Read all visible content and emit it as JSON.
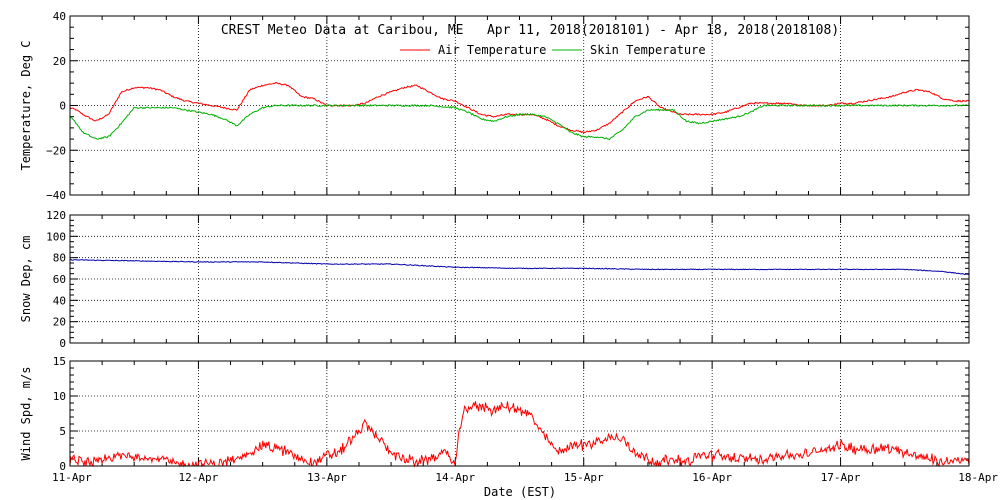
{
  "chart_data": {
    "type": "line",
    "title": "CREST Meteo Data at Caribou, ME   Apr 11, 2018(2018101) - Apr 18, 2018(2018108)",
    "xlabel": "Date (EST)",
    "x_tick_labels": [
      "11-Apr",
      "12-Apr",
      "13-Apr",
      "14-Apr",
      "15-Apr",
      "16-Apr",
      "17-Apr",
      "18-Apr"
    ],
    "x_range": [
      "11-Apr",
      "18-Apr"
    ],
    "panels": [
      {
        "id": "temperature",
        "ylabel": "Temperature, Deg C",
        "ylim": [
          -40,
          40
        ],
        "y_ticks": [
          40,
          20,
          0,
          -20,
          -40
        ],
        "y_tick_labels": [
          "40",
          "20",
          "0",
          "−20",
          "−40"
        ],
        "legend": "top-center",
        "series": [
          {
            "name": "Air Temperature",
            "color": "#ff0000",
            "x": [
              0,
              0.05,
              0.1,
              0.2,
              0.3,
              0.4,
              0.5,
              0.6,
              0.7,
              0.8,
              0.9,
              1.0,
              1.1,
              1.2,
              1.3,
              1.4,
              1.5,
              1.6,
              1.7,
              1.8,
              1.9,
              2.0,
              2.1,
              2.2,
              2.3,
              2.4,
              2.5,
              2.6,
              2.7,
              2.8,
              2.9,
              3.0,
              3.1,
              3.2,
              3.3,
              3.4,
              3.5,
              3.6,
              3.7,
              3.8,
              3.9,
              4.0,
              4.1,
              4.2,
              4.3,
              4.4,
              4.5,
              4.6,
              4.7,
              4.75,
              4.8,
              4.9,
              5.0,
              5.1,
              5.2,
              5.3,
              5.4,
              5.5,
              5.6,
              5.7,
              5.8,
              5.9,
              6.0,
              6.1,
              6.2,
              6.3,
              6.4,
              6.5,
              6.6,
              6.7,
              6.8,
              6.9,
              7.0
            ],
            "values": [
              -1,
              -2,
              -4,
              -7,
              -4,
              6,
              8,
              8,
              7,
              4,
              2,
              1,
              0,
              -1,
              -2,
              7,
              9,
              10,
              9,
              4,
              3,
              0,
              0,
              0,
              1,
              4,
              6,
              8,
              9,
              6,
              3,
              2,
              -1,
              -4,
              -5,
              -4,
              -4,
              -4,
              -6,
              -9,
              -11,
              -12,
              -11,
              -8,
              -3,
              2,
              4,
              -1,
              -3,
              -4,
              -4,
              -4,
              -4,
              -3,
              -1,
              1,
              1,
              1,
              1,
              0,
              0,
              0,
              1,
              1,
              2,
              3,
              4,
              6,
              7,
              6,
              3,
              2,
              2
            ]
          },
          {
            "name": "Skin Temperature",
            "color": "#00b000",
            "x": [
              0,
              0.05,
              0.1,
              0.2,
              0.3,
              0.4,
              0.5,
              0.6,
              0.7,
              0.8,
              0.9,
              1.0,
              1.1,
              1.2,
              1.3,
              1.4,
              1.5,
              1.6,
              1.7,
              1.8,
              1.9,
              2.0,
              2.2,
              2.4,
              2.6,
              2.8,
              3.0,
              3.1,
              3.2,
              3.3,
              3.4,
              3.5,
              3.6,
              3.7,
              3.8,
              3.9,
              4.0,
              4.1,
              4.2,
              4.3,
              4.4,
              4.5,
              4.6,
              4.7,
              4.8,
              4.9,
              5.0,
              5.1,
              5.2,
              5.3,
              5.4,
              5.6,
              5.8,
              6.0,
              6.2,
              6.4,
              6.6,
              6.8,
              7.0
            ],
            "values": [
              -5,
              -8,
              -12,
              -15,
              -14,
              -8,
              -1,
              -1,
              -1,
              -1,
              -2,
              -3,
              -4,
              -6,
              -9,
              -4,
              -1,
              0,
              0,
              0,
              0,
              0,
              0,
              0,
              0,
              0,
              -1,
              -3,
              -6,
              -7,
              -5,
              -4,
              -4,
              -5,
              -8,
              -12,
              -14,
              -14,
              -15,
              -11,
              -5,
              -2,
              -2,
              -2,
              -7,
              -8,
              -7,
              -6,
              -5,
              -3,
              0,
              0,
              0,
              0,
              0,
              0,
              0,
              0,
              0
            ]
          }
        ]
      },
      {
        "id": "snow",
        "ylabel": "Snow Dep, cm",
        "ylim": [
          0,
          120
        ],
        "y_ticks": [
          0,
          20,
          40,
          60,
          80,
          100,
          120
        ],
        "y_tick_labels": [
          "0",
          "20",
          "40",
          "60",
          "80",
          "100",
          "120"
        ],
        "series": [
          {
            "name": "",
            "color": "#0000aa",
            "x": [
              0,
              0.5,
              1.0,
              1.5,
              2.0,
              2.5,
              3.0,
              3.5,
              4.0,
              4.5,
              5.0,
              5.5,
              6.0,
              6.5,
              6.8,
              7.0
            ],
            "values": [
              78,
              77,
              76,
              76,
              74,
              74,
              71,
              70,
              70,
              69,
              69,
              69,
              69,
              69,
              67,
              64
            ]
          }
        ]
      },
      {
        "id": "wind",
        "ylabel": "Wind Spd, m/s",
        "ylim": [
          0,
          15
        ],
        "y_ticks": [
          0,
          5,
          10,
          15
        ],
        "y_tick_labels": [
          "0",
          "5",
          "10",
          "15"
        ],
        "series": [
          {
            "name": "",
            "color": "#ff0000",
            "x": [
              0,
              0.1,
              0.2,
              0.3,
              0.4,
              0.5,
              0.6,
              0.7,
              0.8,
              0.9,
              1.0,
              1.1,
              1.2,
              1.3,
              1.4,
              1.5,
              1.6,
              1.7,
              1.8,
              1.9,
              2.0,
              2.1,
              2.2,
              2.3,
              2.4,
              2.5,
              2.6,
              2.7,
              2.8,
              2.9,
              3.0,
              3.05,
              3.1,
              3.2,
              3.3,
              3.4,
              3.5,
              3.6,
              3.7,
              3.8,
              3.9,
              4.0,
              4.1,
              4.2,
              4.3,
              4.4,
              4.5,
              4.6,
              4.7,
              4.8,
              4.9,
              5.0,
              5.1,
              5.2,
              5.3,
              5.4,
              5.5,
              5.6,
              5.7,
              5.8,
              5.9,
              6.0,
              6.1,
              6.2,
              6.3,
              6.4,
              6.5,
              6.6,
              6.7,
              6.8,
              6.9,
              7.0
            ],
            "values": [
              1,
              0.5,
              0.5,
              1,
              1.5,
              1.5,
              1.2,
              1,
              0.5,
              0,
              0.3,
              0.2,
              0.5,
              1,
              2,
              3,
              2.5,
              2,
              1,
              0.5,
              1.5,
              2,
              4,
              6,
              4,
              2,
              1,
              0.5,
              1,
              2,
              0.5,
              7,
              8.5,
              8.5,
              8,
              8.5,
              8,
              7,
              4,
              2,
              3,
              3,
              3.5,
              4,
              4,
              2,
              1,
              0.5,
              1,
              0.5,
              1.5,
              1.5,
              1.5,
              1,
              1,
              1,
              1.5,
              1.5,
              1.5,
              2,
              2.5,
              3,
              2.5,
              2.5,
              2.5,
              2.5,
              2,
              1.5,
              1,
              0.5,
              1,
              0.5
            ]
          }
        ]
      }
    ]
  }
}
